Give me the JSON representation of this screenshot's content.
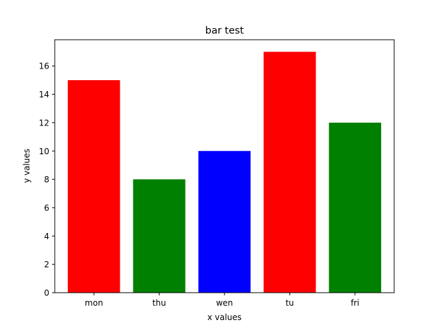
{
  "chart_data": {
    "type": "bar",
    "title": "bar test",
    "xlabel": "x values",
    "ylabel": "y values",
    "categories": [
      "mon",
      "thu",
      "wen",
      "tu",
      "fri"
    ],
    "values": [
      15,
      8,
      10,
      17,
      12
    ],
    "bar_colors": [
      "#ff0000",
      "#008000",
      "#0000ff",
      "#ff0000",
      "#008000"
    ],
    "ylim": [
      0,
      17.85
    ],
    "yticks": [
      0,
      2,
      4,
      6,
      8,
      10,
      12,
      14,
      16
    ],
    "grid": false,
    "legend": "none"
  }
}
